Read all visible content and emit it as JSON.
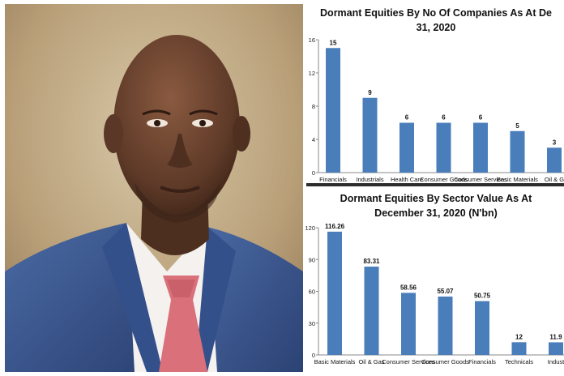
{
  "chart_data": [
    {
      "type": "bar",
      "title_line1": "Dormant Equities By No Of Companies As At De",
      "title_line2": "31, 2020",
      "categories": [
        "Financials",
        "Industrials",
        "Health Care",
        "Consumer Goods",
        "Consumer Services",
        "Basic Materials",
        "Oil & G"
      ],
      "values": [
        15,
        9,
        6,
        6,
        6,
        5,
        3
      ],
      "value_labels": [
        "15",
        "9",
        "6",
        "6",
        "6",
        "5",
        "3"
      ],
      "yticks": [
        "0",
        "4",
        "8",
        "12",
        "16"
      ],
      "ylim": [
        0,
        16
      ],
      "bar_color": "#4a7ebb",
      "grid": false
    },
    {
      "type": "bar",
      "title_line1": "Dormant Equities By Sector Value As At",
      "title_line2": "December 31, 2020 (N'bn)",
      "categories": [
        "Basic Materials",
        "Oil & Gas",
        "Consumer Services",
        "Consumer Goods",
        "Financials",
        "Technicals",
        "Indust"
      ],
      "values": [
        116.26,
        83.31,
        58.56,
        55.07,
        50.75,
        12,
        11.9
      ],
      "value_labels": [
        "116.26",
        "83.31",
        "58.56",
        "55.07",
        "50.75",
        "12",
        "11.9"
      ],
      "yticks": [
        "0",
        "30",
        "60",
        "90",
        "120"
      ],
      "ylim": [
        0,
        120
      ],
      "bar_color": "#4a7ebb",
      "grid": false
    }
  ],
  "photo": {
    "icon": "portrait-photo",
    "colors": {
      "background": "#bda67f",
      "suit": "#3d5a92",
      "shirt": "#f4f1ee",
      "tie": "#d9707a",
      "skin": "#6e4530"
    }
  }
}
